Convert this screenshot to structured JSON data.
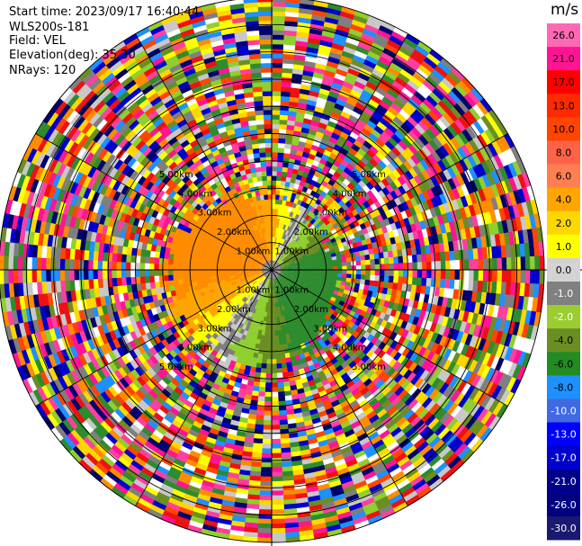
{
  "header": {
    "start_time": "Start time: 2023/09/17 16:40:44",
    "instrument": "WLS200s-181",
    "field": "Field: VEL",
    "elevation": "Elevation(deg): 35.30",
    "nrays": "NRays: 120"
  },
  "colorbar": {
    "unit": "m/s",
    "levels": [
      {
        "label": "26.0",
        "color": "#ff69b4"
      },
      {
        "label": "21.0",
        "color": "#ff1493"
      },
      {
        "label": "17.0",
        "color": "#ff0000"
      },
      {
        "label": "13.0",
        "color": "#ff2a00"
      },
      {
        "label": "10.0",
        "color": "#ff4500"
      },
      {
        "label": "8.0",
        "color": "#ff6347"
      },
      {
        "label": "6.0",
        "color": "#ff7f50"
      },
      {
        "label": "4.0",
        "color": "#ffa500"
      },
      {
        "label": "2.0",
        "color": "#ffd700"
      },
      {
        "label": "1.0",
        "color": "#ffff00"
      },
      {
        "label": "0.0",
        "color": "#d3d3d3"
      },
      {
        "label": "-1.0",
        "color": "#808080"
      },
      {
        "label": "-2.0",
        "color": "#9acd32"
      },
      {
        "label": "-4.0",
        "color": "#6b8e23"
      },
      {
        "label": "-6.0",
        "color": "#228b22"
      },
      {
        "label": "-8.0",
        "color": "#1e90ff"
      },
      {
        "label": "-10.0",
        "color": "#4169e1"
      },
      {
        "label": "-13.0",
        "color": "#0000ff"
      },
      {
        "label": "-17.0",
        "color": "#0000cd"
      },
      {
        "label": "-21.0",
        "color": "#00008b"
      },
      {
        "label": "-26.0",
        "color": "#000080"
      },
      {
        "label": "-30.0",
        "color": "#191970"
      }
    ]
  },
  "chart_data": {
    "type": "heatmap",
    "subtype": "polar-ppi",
    "field": "VEL",
    "units": "m/s",
    "n_rays": 120,
    "elevation_deg": 35.3,
    "range_rings": [
      {
        "label": "1.00km"
      },
      {
        "label": "2.00km"
      },
      {
        "label": "3.00km"
      },
      {
        "label": "4.00km"
      },
      {
        "label": "5.00km"
      }
    ],
    "max_range_km": 5.0,
    "pattern": "Near-range region shows coherent radial velocities: positive (yellow/orange, 1-6 m/s) toward north and west, negative (green, -2 to -8 m/s) toward south and east, near-zero (gray) band crossing center; beyond ~1.6 km the field is noise (random colours)."
  }
}
